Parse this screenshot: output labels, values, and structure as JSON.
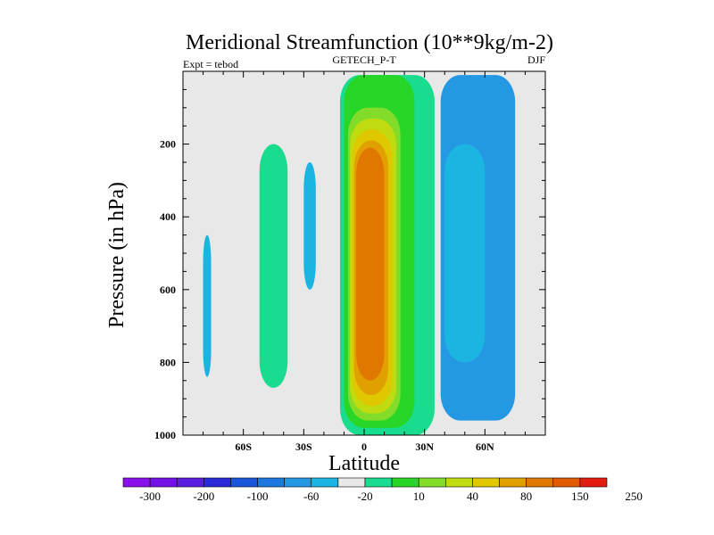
{
  "chart_data": {
    "type": "contour",
    "title": "Meridional Streamfunction (10**9kg/m-2)",
    "left_subtitle": "Expt = tebod",
    "center_subtitle": "GETECH_P-T",
    "right_subtitle": "DJF",
    "xlabel": "Latitude",
    "ylabel": "Pressure (in hPa)",
    "xlim": [
      -90,
      90
    ],
    "ylim": [
      0,
      1000
    ],
    "x_ticks": [
      {
        "value": -60,
        "label": "60S"
      },
      {
        "value": -30,
        "label": "30S"
      },
      {
        "value": 0,
        "label": "0"
      },
      {
        "value": 30,
        "label": "30N"
      },
      {
        "value": 60,
        "label": "60N"
      }
    ],
    "y_ticks": [
      200,
      400,
      600,
      800,
      1000
    ],
    "background_color": "#e8e8e8",
    "colorbar": {
      "colors": [
        "#8a10ea",
        "#7412e6",
        "#5a1ee0",
        "#2a2ad8",
        "#1a56d8",
        "#1e78e0",
        "#2498e2",
        "#1cb4e0",
        "#e8e8e8",
        "#1adc8e",
        "#28d628",
        "#84dc2a",
        "#c0dc10",
        "#e0c800",
        "#e0a000",
        "#e07800",
        "#e05a00",
        "#e41c10"
      ],
      "tick_labels": [
        "-300",
        "-200",
        "-100",
        "-60",
        "-20",
        "10",
        "40",
        "80",
        "150",
        "250"
      ]
    },
    "regions": [
      {
        "name": "positive-cell-10",
        "level": 10,
        "color": "#1adc8e",
        "lat_ranges": [
          -12,
          35
        ],
        "p_top": 10,
        "p_bottom": 1000
      },
      {
        "name": "positive-cell-20",
        "level": 20,
        "color": "#28d628",
        "lat_ranges": [
          -10,
          25
        ],
        "p_top": 10,
        "p_bottom": 980
      },
      {
        "name": "positive-cell-40",
        "level": 40,
        "color": "#84dc2a",
        "lat_ranges": [
          -8,
          18
        ],
        "p_top": 100,
        "p_bottom": 960
      },
      {
        "name": "positive-cell-60",
        "level": 60,
        "color": "#c0dc10",
        "lat_ranges": [
          -7,
          16
        ],
        "p_top": 130,
        "p_bottom": 940
      },
      {
        "name": "positive-cell-80",
        "level": 80,
        "color": "#e0c800",
        "lat_ranges": [
          -6,
          14
        ],
        "p_top": 160,
        "p_bottom": 920
      },
      {
        "name": "positive-cell-100",
        "level": 100,
        "color": "#e0a000",
        "lat_ranges": [
          -5,
          12
        ],
        "p_top": 190,
        "p_bottom": 890
      },
      {
        "name": "positive-cell-150",
        "level": 150,
        "color": "#e07800",
        "lat_ranges": [
          -4,
          10
        ],
        "p_top": 210,
        "p_bottom": 850
      },
      {
        "name": "negative-cell-north-10",
        "level": -10,
        "color": "#2498e2",
        "lat_ranges": [
          38,
          75
        ],
        "p_top": 10,
        "p_bottom": 960
      },
      {
        "name": "negative-cell-north-20",
        "level": -20,
        "color": "#1cb4e0",
        "lat_ranges": [
          40,
          60
        ],
        "p_top": 200,
        "p_bottom": 800
      },
      {
        "name": "negative-cell-south-10",
        "level": -10,
        "color": "#1cb4e0",
        "lat_ranges": [
          -30,
          -24
        ],
        "p_top": 250,
        "p_bottom": 600
      },
      {
        "name": "positive-cell-south",
        "level": 10,
        "color": "#1adc8e",
        "lat_ranges": [
          -52,
          -38
        ],
        "p_top": 200,
        "p_bottom": 870
      },
      {
        "name": "negative-cell-far-south",
        "level": -10,
        "color": "#1cb4e0",
        "lat_ranges": [
          -80,
          -76
        ],
        "p_top": 450,
        "p_bottom": 840
      }
    ]
  }
}
